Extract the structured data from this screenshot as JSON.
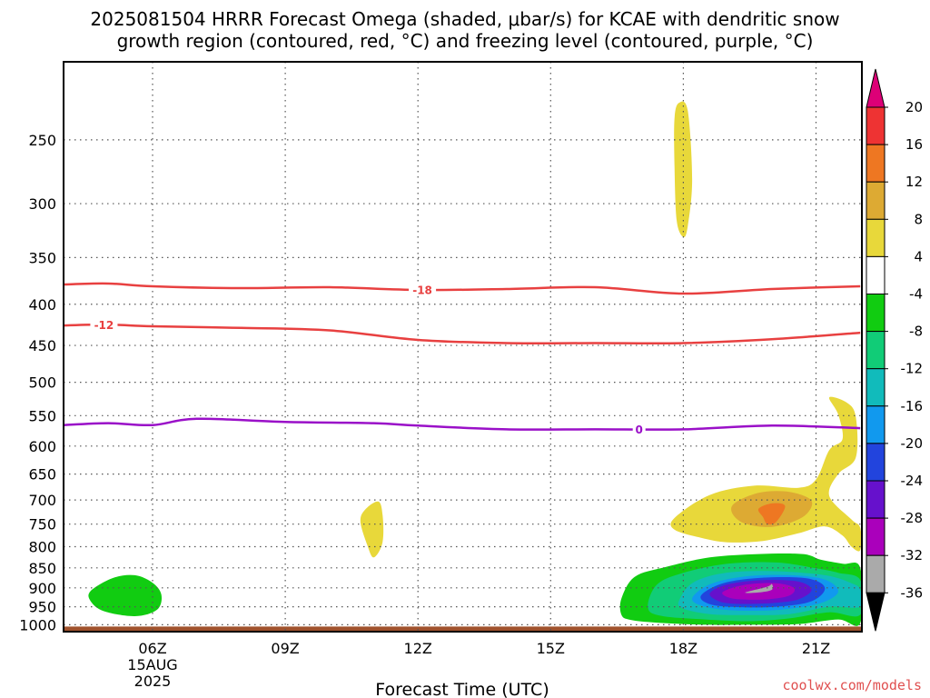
{
  "title_line1": "2025081504 HRRR Forecast Omega (shaded, μbar/s) for KCAE with dendritic snow",
  "title_line2": "growth region (contoured, red, °C) and freezing level (contoured, purple, °C)",
  "credit": "coolwx.com/models",
  "chart_data": {
    "type": "heatmap",
    "xlabel": "Forecast Time (UTC)",
    "ylabel": "",
    "x_ticks": [
      {
        "hour": 6,
        "label": "06Z",
        "sub1": "15AUG",
        "sub2": "2025"
      },
      {
        "hour": 9,
        "label": "09Z"
      },
      {
        "hour": 12,
        "label": "12Z"
      },
      {
        "hour": 15,
        "label": "15Z"
      },
      {
        "hour": 18,
        "label": "18Z"
      },
      {
        "hour": 21,
        "label": "21Z"
      }
    ],
    "xlim": [
      4,
      22
    ],
    "y_ticks": [
      250,
      300,
      350,
      400,
      450,
      500,
      550,
      600,
      650,
      700,
      750,
      800,
      850,
      900,
      950,
      1000
    ],
    "ylim_hpa": [
      200,
      1020
    ],
    "grid": true,
    "ground_color": "#a0522d",
    "colorbar": {
      "ticks": [
        "20",
        "16",
        "12",
        "8",
        "4",
        "-4",
        "-8",
        "-12",
        "-16",
        "-20",
        "-24",
        "-28",
        "-32",
        "-36"
      ],
      "colors": [
        "#dd0077",
        "#ee3333",
        "#ee7722",
        "#ddaa33",
        "#e8d83a",
        "#ffffff",
        "#11cc11",
        "#11cc77",
        "#11bbbb",
        "#1199ee",
        "#2244dd",
        "#6611cc",
        "#aa00bb",
        "#aaaaaa",
        "#000000"
      ]
    },
    "contours": [
      {
        "kind": "dendritic",
        "value": -18,
        "label": "-18",
        "color": "#e84040",
        "label_hour": 12.1,
        "points": [
          [
            4,
            378
          ],
          [
            5,
            377
          ],
          [
            6,
            380
          ],
          [
            8,
            382
          ],
          [
            10,
            381
          ],
          [
            12,
            384
          ],
          [
            14,
            383
          ],
          [
            16,
            381
          ],
          [
            18,
            388
          ],
          [
            20,
            383
          ],
          [
            22,
            380
          ]
        ]
      },
      {
        "kind": "dendritic",
        "value": -12,
        "label": "-12",
        "color": "#e84040",
        "label_hour": 4.9,
        "points": [
          [
            4,
            425
          ],
          [
            5,
            424
          ],
          [
            6,
            426
          ],
          [
            8,
            428
          ],
          [
            10,
            431
          ],
          [
            12,
            443
          ],
          [
            14,
            447
          ],
          [
            16,
            447
          ],
          [
            18,
            447
          ],
          [
            20,
            442
          ],
          [
            22,
            434
          ]
        ]
      },
      {
        "kind": "freezing",
        "value": 0,
        "label": "0",
        "color": "#9a10c8",
        "label_hour": 17.0,
        "points": [
          [
            4,
            565
          ],
          [
            5,
            562
          ],
          [
            6,
            565
          ],
          [
            7,
            555
          ],
          [
            9,
            560
          ],
          [
            11,
            562
          ],
          [
            12,
            566
          ],
          [
            14,
            572
          ],
          [
            16,
            572
          ],
          [
            18,
            572
          ],
          [
            20,
            566
          ],
          [
            22,
            570
          ]
        ]
      }
    ],
    "shaded_regions": [
      {
        "value": 4,
        "color": "#e8d83a",
        "points": [
          [
            17.9,
            225
          ],
          [
            18.1,
            230
          ],
          [
            18.2,
            280
          ],
          [
            18.1,
            320
          ],
          [
            18.0,
            330
          ],
          [
            17.85,
            315
          ],
          [
            17.8,
            270
          ],
          [
            17.8,
            235
          ]
        ]
      },
      {
        "value": 4,
        "color": "#e8d83a",
        "points": [
          [
            10.8,
            720
          ],
          [
            11.1,
            703
          ],
          [
            11.2,
            730
          ],
          [
            11.2,
            790
          ],
          [
            11.0,
            825
          ],
          [
            10.85,
            795
          ],
          [
            10.7,
            745
          ]
        ]
      },
      {
        "value": 4,
        "color": "#e8d83a",
        "points": [
          [
            17.8,
            737
          ],
          [
            18.6,
            690
          ],
          [
            19.6,
            672
          ],
          [
            20.6,
            676
          ],
          [
            21.0,
            660
          ],
          [
            21.3,
            607
          ],
          [
            21.6,
            588
          ],
          [
            21.5,
            548
          ],
          [
            21.3,
            522
          ],
          [
            21.7,
            530
          ],
          [
            21.9,
            552
          ],
          [
            21.9,
            620
          ],
          [
            21.5,
            650
          ],
          [
            21.3,
            692
          ],
          [
            21.8,
            740
          ],
          [
            22.0,
            758
          ],
          [
            22.0,
            808
          ],
          [
            21.8,
            800
          ],
          [
            21.6,
            775
          ],
          [
            21.2,
            755
          ],
          [
            20.6,
            770
          ],
          [
            19.8,
            787
          ],
          [
            19.0,
            790
          ],
          [
            18.4,
            780
          ],
          [
            17.8,
            762
          ]
        ]
      },
      {
        "value": 8,
        "color": "#ddaa33",
        "points": [
          [
            19.1,
            712
          ],
          [
            19.7,
            686
          ],
          [
            20.4,
            684
          ],
          [
            20.9,
            702
          ],
          [
            20.7,
            735
          ],
          [
            20.0,
            756
          ],
          [
            19.3,
            745
          ]
        ]
      },
      {
        "value": 12,
        "color": "#ee7722",
        "points": [
          [
            19.7,
            718
          ],
          [
            20.0,
            707
          ],
          [
            20.3,
            712
          ],
          [
            20.1,
            745
          ],
          [
            19.9,
            750
          ],
          [
            19.8,
            735
          ]
        ]
      },
      {
        "value": -4,
        "color": "#11cc11",
        "points": [
          [
            4.6,
            908
          ],
          [
            5.1,
            875
          ],
          [
            5.6,
            868
          ],
          [
            6.0,
            887
          ],
          [
            6.2,
            918
          ],
          [
            6.1,
            958
          ],
          [
            5.6,
            976
          ],
          [
            4.9,
            962
          ],
          [
            4.6,
            935
          ]
        ]
      },
      {
        "value": -4,
        "color": "#11cc11",
        "points": [
          [
            16.6,
            972
          ],
          [
            16.6,
            928
          ],
          [
            16.9,
            872
          ],
          [
            17.6,
            848
          ],
          [
            18.6,
            825
          ],
          [
            19.7,
            817
          ],
          [
            20.7,
            817
          ],
          [
            21.1,
            830
          ],
          [
            21.6,
            840
          ],
          [
            22.0,
            850
          ],
          [
            22.0,
            995
          ],
          [
            21.5,
            985
          ],
          [
            20.6,
            998
          ],
          [
            19.5,
            1000
          ],
          [
            18.5,
            1000
          ],
          [
            17.4,
            994
          ],
          [
            16.8,
            986
          ]
        ]
      },
      {
        "value": -8,
        "color": "#11cc77",
        "points": [
          [
            17.2,
            952
          ],
          [
            17.4,
            892
          ],
          [
            18.0,
            862
          ],
          [
            19.0,
            840
          ],
          [
            20.1,
            837
          ],
          [
            21.0,
            851
          ],
          [
            21.5,
            862
          ],
          [
            22.0,
            880
          ],
          [
            22.0,
            972
          ],
          [
            21.3,
            965
          ],
          [
            20.4,
            982
          ],
          [
            19.5,
            990
          ],
          [
            18.5,
            985
          ],
          [
            17.5,
            975
          ]
        ]
      },
      {
        "value": -12,
        "color": "#11bbbb",
        "points": [
          [
            17.9,
            935
          ],
          [
            18.2,
            888
          ],
          [
            18.9,
            863
          ],
          [
            20.0,
            858
          ],
          [
            21.2,
            868
          ],
          [
            21.8,
            888
          ],
          [
            22.0,
            905
          ],
          [
            22.0,
            950
          ],
          [
            21.3,
            950
          ],
          [
            20.4,
            970
          ],
          [
            19.4,
            973
          ],
          [
            18.6,
            970
          ],
          [
            18.0,
            955
          ]
        ]
      },
      {
        "value": -16,
        "color": "#1199ee",
        "points": [
          [
            18.2,
            928
          ],
          [
            18.6,
            891
          ],
          [
            19.4,
            871
          ],
          [
            20.4,
            868
          ],
          [
            21.2,
            879
          ],
          [
            21.5,
            910
          ],
          [
            21.1,
            940
          ],
          [
            20.2,
            958
          ],
          [
            19.2,
            960
          ],
          [
            18.5,
            950
          ]
        ]
      },
      {
        "value": -20,
        "color": "#2244dd",
        "points": [
          [
            18.4,
            920
          ],
          [
            18.9,
            888
          ],
          [
            19.8,
            874
          ],
          [
            20.8,
            876
          ],
          [
            21.2,
            900
          ],
          [
            20.9,
            935
          ],
          [
            20.1,
            950
          ],
          [
            19.2,
            951
          ],
          [
            18.6,
            943
          ]
        ]
      },
      {
        "value": -24,
        "color": "#6611cc",
        "points": [
          [
            18.6,
            914
          ],
          [
            19.0,
            891
          ],
          [
            19.8,
            880
          ],
          [
            20.6,
            884
          ],
          [
            20.9,
            905
          ],
          [
            20.6,
            930
          ],
          [
            20.0,
            940
          ],
          [
            19.2,
            942
          ],
          [
            18.8,
            935
          ]
        ]
      },
      {
        "value": -28,
        "color": "#aa00bb",
        "points": [
          [
            18.9,
            910
          ],
          [
            19.4,
            892
          ],
          [
            20.1,
            888
          ],
          [
            20.5,
            900
          ],
          [
            20.4,
            920
          ],
          [
            19.9,
            930
          ],
          [
            19.3,
            930
          ],
          [
            19.0,
            924
          ]
        ]
      },
      {
        "value": -32,
        "color": "#aaaaaa",
        "points": [
          [
            19.4,
            912
          ],
          [
            19.9,
            897
          ],
          [
            20.0,
            890
          ],
          [
            20.0,
            905
          ],
          [
            19.7,
            912
          ]
        ]
      }
    ]
  }
}
